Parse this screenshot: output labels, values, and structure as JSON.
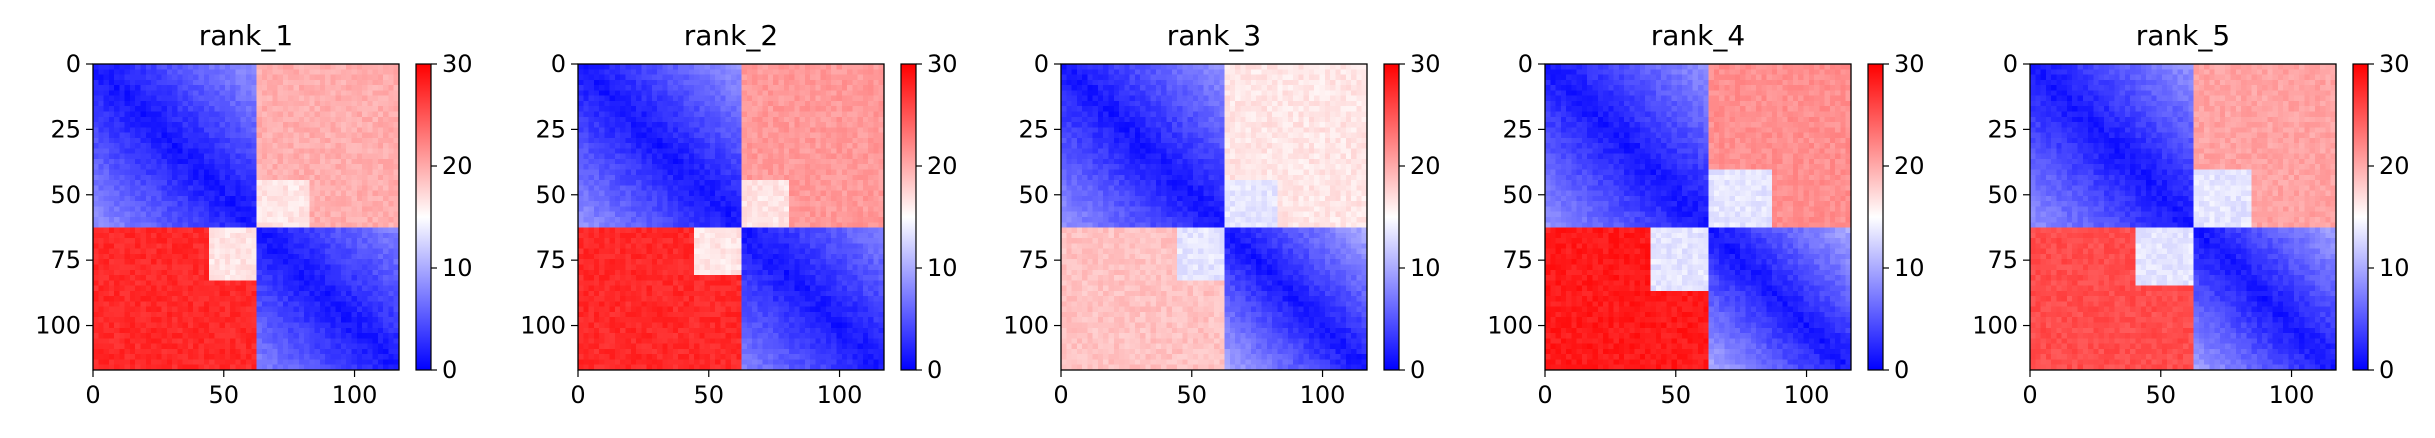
{
  "chart_data": [
    {
      "type": "heatmap",
      "title": "rank_1",
      "xlim": [
        0,
        117
      ],
      "ylim": [
        117,
        0
      ],
      "xticks": [
        0,
        50,
        100
      ],
      "yticks": [
        0,
        25,
        50,
        75,
        100
      ],
      "colorbar": {
        "min": 0,
        "max": 30,
        "ticks": [
          0,
          10,
          20,
          30
        ],
        "colormap": "bwr",
        "colors": [
          "#0000ff",
          "#ffffff",
          "#ff0000"
        ]
      },
      "matrix_size": 117,
      "pattern": {
        "split": 62,
        "notch_start": 44,
        "notch_width": 18,
        "notch_height": 20,
        "block_b_level": 0.22,
        "cross_level": 0.92,
        "notch_level": 0.55,
        "upper_right_level": 0.66
      }
    },
    {
      "type": "heatmap",
      "title": "rank_2",
      "xlim": [
        0,
        117
      ],
      "ylim": [
        117,
        0
      ],
      "xticks": [
        0,
        50,
        100
      ],
      "yticks": [
        0,
        25,
        50,
        75,
        100
      ],
      "colorbar": {
        "min": 0,
        "max": 30,
        "ticks": [
          0,
          10,
          20,
          30
        ],
        "colormap": "bwr",
        "colors": [
          "#0000ff",
          "#ffffff",
          "#ff0000"
        ]
      },
      "matrix_size": 117,
      "pattern": {
        "split": 62,
        "notch_start": 44,
        "notch_width": 18,
        "notch_height": 18,
        "block_b_level": 0.22,
        "cross_level": 0.92,
        "notch_level": 0.55,
        "upper_right_level": 0.7
      }
    },
    {
      "type": "heatmap",
      "title": "rank_3",
      "xlim": [
        0,
        117
      ],
      "ylim": [
        117,
        0
      ],
      "xticks": [
        0,
        50,
        100
      ],
      "yticks": [
        0,
        25,
        50,
        75,
        100
      ],
      "colorbar": {
        "min": 0,
        "max": 30,
        "ticks": [
          0,
          10,
          20,
          30
        ],
        "colormap": "bwr",
        "colors": [
          "#0000ff",
          "#ffffff",
          "#ff0000"
        ]
      },
      "matrix_size": 117,
      "pattern": {
        "split": 62,
        "notch_start": 44,
        "notch_width": 18,
        "notch_height": 20,
        "block_b_level": 0.3,
        "cross_level": 0.62,
        "notch_level": 0.45,
        "upper_right_level": 0.55
      }
    },
    {
      "type": "heatmap",
      "title": "rank_4",
      "xlim": [
        0,
        117
      ],
      "ylim": [
        117,
        0
      ],
      "xticks": [
        0,
        50,
        100
      ],
      "yticks": [
        0,
        25,
        50,
        75,
        100
      ],
      "colorbar": {
        "min": 0,
        "max": 30,
        "ticks": [
          0,
          10,
          20,
          30
        ],
        "colormap": "bwr",
        "colors": [
          "#0000ff",
          "#ffffff",
          "#ff0000"
        ]
      },
      "matrix_size": 117,
      "pattern": {
        "split": 62,
        "notch_start": 40,
        "notch_width": 22,
        "notch_height": 24,
        "block_b_level": 0.3,
        "cross_level": 0.95,
        "notch_level": 0.45,
        "upper_right_level": 0.72
      }
    },
    {
      "type": "heatmap",
      "title": "rank_5",
      "xlim": [
        0,
        117
      ],
      "ylim": [
        117,
        0
      ],
      "xticks": [
        0,
        50,
        100
      ],
      "yticks": [
        0,
        25,
        50,
        75,
        100
      ],
      "colorbar": {
        "min": 0,
        "max": 30,
        "ticks": [
          0,
          10,
          20,
          30
        ],
        "colormap": "bwr",
        "colors": [
          "#0000ff",
          "#ffffff",
          "#ff0000"
        ]
      },
      "matrix_size": 117,
      "pattern": {
        "split": 62,
        "notch_start": 40,
        "notch_width": 22,
        "notch_height": 22,
        "block_b_level": 0.28,
        "cross_level": 0.85,
        "notch_level": 0.45,
        "upper_right_level": 0.68
      }
    }
  ]
}
